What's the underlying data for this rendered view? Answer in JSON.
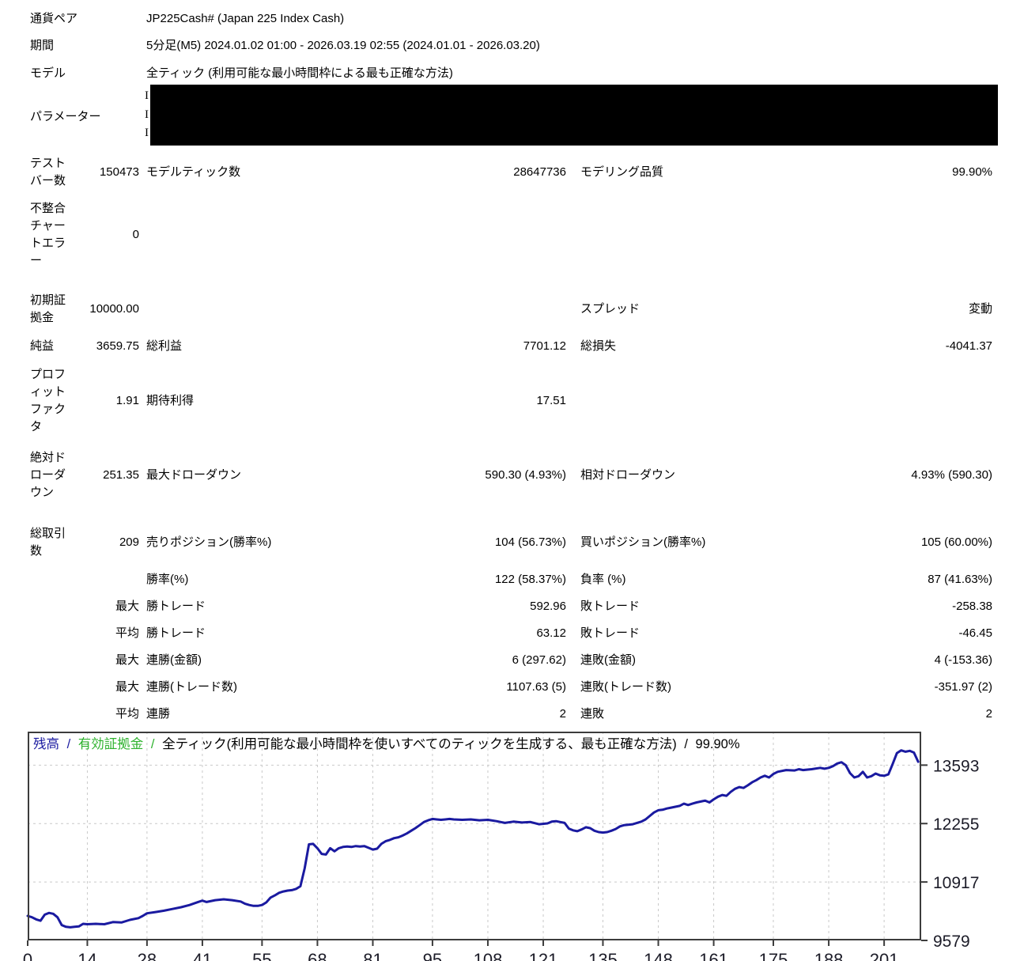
{
  "report": {
    "header": {
      "rows": [
        {
          "label": "通貨ペア",
          "value": "JP225Cash# (Japan 225 Index Cash)"
        },
        {
          "label": "期間",
          "value": "5分足(M5) 2024.01.02 01:00 - 2026.03.19 02:55 (2024.01.01 - 2026.03.20)"
        },
        {
          "label": "モデル",
          "value": "全ティック (利用可能な最小時間枠による最も正確な方法)"
        },
        {
          "label": "パラメーター",
          "redacted_visible_fragments": [
            "I",
            "I",
            "I"
          ]
        }
      ]
    },
    "stats": {
      "rows": [
        {
          "c1": "テストバー数",
          "c2": "150473",
          "c3": "モデルティック数",
          "c4": "28647736",
          "c5": "モデリング品質",
          "c6": "99.90%"
        },
        {
          "c1": "不整合チャートエラー",
          "c2": "0",
          "c3": "",
          "c4": "",
          "c5": "",
          "c6": ""
        },
        {
          "c1": "初期証拠金",
          "c2": "10000.00",
          "c3": "",
          "c4": "",
          "c5": "スプレッド",
          "c6": "変動"
        },
        {
          "c1": "純益",
          "c2": "3659.75",
          "c3": "総利益",
          "c4": "7701.12",
          "c5": "総損失",
          "c6": "-4041.37"
        },
        {
          "c1": "プロフィットファクタ",
          "c2": "1.91",
          "c3": "期待利得",
          "c4": "17.51",
          "c5": "",
          "c6": ""
        },
        {
          "c1": "絶対ドローダウン",
          "c2": "251.35",
          "c3": "最大ドローダウン",
          "c4": "590.30 (4.93%)",
          "c5": "相対ドローダウン",
          "c6": "4.93% (590.30)"
        },
        {
          "c1": "総取引数",
          "c2": "209",
          "c3": "売りポジション(勝率%)",
          "c4": "104 (56.73%)",
          "c5": "買いポジション(勝率%)",
          "c6": "105 (60.00%)"
        },
        {
          "c1": "",
          "c2": "",
          "c3": "勝率(%)",
          "c4": "122 (58.37%)",
          "c5": "負率 (%)",
          "c6": "87 (41.63%)"
        },
        {
          "c1": "",
          "c2": "最大",
          "c3": "勝トレード",
          "c4": "592.96",
          "c5": "敗トレード",
          "c6": "-258.38"
        },
        {
          "c1": "",
          "c2": "平均",
          "c3": "勝トレード",
          "c4": "63.12",
          "c5": "敗トレード",
          "c6": "-46.45"
        },
        {
          "c1": "",
          "c2": "最大",
          "c3": "連勝(金額)",
          "c4": "6 (297.62)",
          "c5": "連敗(金額)",
          "c6": "4 (-153.36)"
        },
        {
          "c1": "",
          "c2": "最大",
          "c3": "連勝(トレード数)",
          "c4": "1107.63 (5)",
          "c5": "連敗(トレード数)",
          "c6": "-351.97 (2)"
        },
        {
          "c1": "",
          "c2": "平均",
          "c3": "連勝",
          "c4": "2",
          "c5": "連敗",
          "c6": "2"
        }
      ]
    }
  },
  "chart_data": {
    "type": "line",
    "legend": {
      "balance_label": "残高",
      "equity_label": "有効証拠金",
      "model_label": "全ティック(利用可能な最小時間枠を使いすべてのティックを生成する、最も正確な方法)",
      "quality_label": "99.90%",
      "separator": "/"
    },
    "colors": {
      "balance": "#1A1AA0",
      "equity": "#2DB22D",
      "grid": "#C9C9C9",
      "axis": "#3C3C3C",
      "tick_text": "#1C1C28"
    },
    "xlabel": "",
    "ylabel": "",
    "xticks": [
      0,
      14,
      28,
      41,
      55,
      68,
      81,
      95,
      108,
      121,
      135,
      148,
      161,
      175,
      188,
      201
    ],
    "yticks": [
      13593,
      12255,
      10917,
      9579
    ],
    "xlim": [
      0,
      209.7
    ],
    "ylim": [
      9579,
      14360
    ],
    "grid": true,
    "series": [
      {
        "name": "残高",
        "points": [
          [
            0,
            10140
          ],
          [
            1,
            10110
          ],
          [
            2,
            10060
          ],
          [
            3,
            10030
          ],
          [
            4,
            10170
          ],
          [
            5,
            10210
          ],
          [
            6,
            10190
          ],
          [
            7,
            10110
          ],
          [
            8,
            9930
          ],
          [
            9,
            9890
          ],
          [
            10,
            9880
          ],
          [
            11,
            9890
          ],
          [
            12,
            9900
          ],
          [
            13,
            9960
          ],
          [
            14,
            9950
          ],
          [
            16,
            9960
          ],
          [
            18,
            9950
          ],
          [
            20,
            10000
          ],
          [
            22,
            9990
          ],
          [
            24,
            10050
          ],
          [
            26,
            10090
          ],
          [
            27,
            10140
          ],
          [
            28,
            10200
          ],
          [
            30,
            10230
          ],
          [
            32,
            10260
          ],
          [
            34,
            10300
          ],
          [
            36,
            10340
          ],
          [
            38,
            10390
          ],
          [
            40,
            10460
          ],
          [
            41,
            10490
          ],
          [
            42,
            10460
          ],
          [
            44,
            10500
          ],
          [
            46,
            10520
          ],
          [
            48,
            10500
          ],
          [
            50,
            10470
          ],
          [
            51,
            10420
          ],
          [
            52,
            10390
          ],
          [
            53,
            10370
          ],
          [
            54,
            10370
          ],
          [
            55,
            10390
          ],
          [
            56,
            10450
          ],
          [
            57,
            10560
          ],
          [
            58,
            10610
          ],
          [
            59,
            10670
          ],
          [
            60,
            10700
          ],
          [
            61,
            10720
          ],
          [
            62,
            10730
          ],
          [
            63,
            10760
          ],
          [
            64,
            10820
          ],
          [
            65,
            11230
          ],
          [
            66,
            11780
          ],
          [
            67,
            11790
          ],
          [
            68,
            11690
          ],
          [
            69,
            11560
          ],
          [
            70,
            11545
          ],
          [
            71,
            11690
          ],
          [
            72,
            11620
          ],
          [
            73,
            11690
          ],
          [
            74,
            11720
          ],
          [
            75,
            11730
          ],
          [
            76,
            11720
          ],
          [
            77,
            11740
          ],
          [
            78,
            11730
          ],
          [
            79,
            11740
          ],
          [
            80,
            11700
          ],
          [
            81,
            11660
          ],
          [
            82,
            11680
          ],
          [
            83,
            11790
          ],
          [
            84,
            11850
          ],
          [
            85,
            11880
          ],
          [
            86,
            11920
          ],
          [
            87,
            11940
          ],
          [
            88,
            11980
          ],
          [
            89,
            12030
          ],
          [
            90,
            12090
          ],
          [
            91,
            12150
          ],
          [
            92,
            12220
          ],
          [
            93,
            12290
          ],
          [
            94,
            12330
          ],
          [
            95,
            12360
          ],
          [
            96,
            12350
          ],
          [
            97,
            12340
          ],
          [
            98,
            12350
          ],
          [
            99,
            12360
          ],
          [
            100,
            12350
          ],
          [
            102,
            12340
          ],
          [
            104,
            12350
          ],
          [
            106,
            12330
          ],
          [
            108,
            12340
          ],
          [
            110,
            12310
          ],
          [
            112,
            12270
          ],
          [
            114,
            12300
          ],
          [
            116,
            12280
          ],
          [
            118,
            12290
          ],
          [
            120,
            12240
          ],
          [
            122,
            12260
          ],
          [
            123,
            12300
          ],
          [
            124,
            12310
          ],
          [
            125,
            12290
          ],
          [
            126,
            12270
          ],
          [
            127,
            12140
          ],
          [
            128,
            12100
          ],
          [
            129,
            12080
          ],
          [
            130,
            12120
          ],
          [
            131,
            12170
          ],
          [
            132,
            12150
          ],
          [
            133,
            12090
          ],
          [
            134,
            12060
          ],
          [
            135,
            12050
          ],
          [
            136,
            12060
          ],
          [
            137,
            12090
          ],
          [
            138,
            12130
          ],
          [
            139,
            12190
          ],
          [
            140,
            12220
          ],
          [
            142,
            12240
          ],
          [
            144,
            12300
          ],
          [
            145,
            12350
          ],
          [
            146,
            12430
          ],
          [
            147,
            12510
          ],
          [
            148,
            12560
          ],
          [
            149,
            12570
          ],
          [
            150,
            12600
          ],
          [
            151,
            12620
          ],
          [
            153,
            12660
          ],
          [
            154,
            12710
          ],
          [
            155,
            12680
          ],
          [
            156,
            12710
          ],
          [
            157,
            12740
          ],
          [
            159,
            12780
          ],
          [
            160,
            12740
          ],
          [
            161,
            12810
          ],
          [
            162,
            12870
          ],
          [
            163,
            12910
          ],
          [
            164,
            12890
          ],
          [
            165,
            12980
          ],
          [
            166,
            13050
          ],
          [
            167,
            13090
          ],
          [
            168,
            13070
          ],
          [
            169,
            13130
          ],
          [
            170,
            13200
          ],
          [
            171,
            13250
          ],
          [
            172,
            13310
          ],
          [
            173,
            13350
          ],
          [
            174,
            13310
          ],
          [
            175,
            13390
          ],
          [
            176,
            13440
          ],
          [
            178,
            13480
          ],
          [
            180,
            13470
          ],
          [
            181,
            13500
          ],
          [
            182,
            13480
          ],
          [
            184,
            13500
          ],
          [
            186,
            13530
          ],
          [
            187,
            13510
          ],
          [
            188,
            13530
          ],
          [
            189,
            13570
          ],
          [
            190,
            13630
          ],
          [
            191,
            13660
          ],
          [
            192,
            13590
          ],
          [
            193,
            13410
          ],
          [
            194,
            13310
          ],
          [
            195,
            13340
          ],
          [
            196,
            13440
          ],
          [
            197,
            13310
          ],
          [
            198,
            13340
          ],
          [
            199,
            13400
          ],
          [
            200,
            13360
          ],
          [
            201,
            13350
          ],
          [
            202,
            13380
          ],
          [
            203,
            13620
          ],
          [
            204,
            13870
          ],
          [
            205,
            13930
          ],
          [
            206,
            13900
          ],
          [
            207,
            13920
          ],
          [
            208,
            13880
          ],
          [
            209,
            13670
          ]
        ]
      }
    ]
  }
}
